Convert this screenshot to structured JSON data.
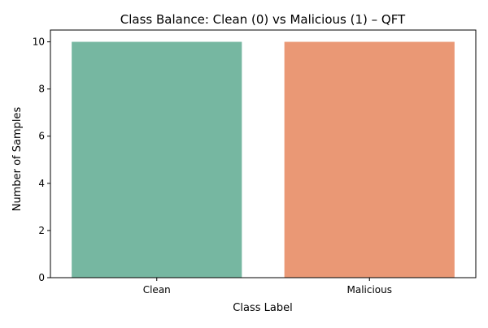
{
  "chart_data": {
    "type": "bar",
    "title": "Class Balance: Clean (0) vs Malicious (1) – QFT",
    "xlabel": "Class Label",
    "ylabel": "Number of Samples",
    "categories": [
      "Clean",
      "Malicious"
    ],
    "values": [
      10,
      10
    ],
    "colors": [
      "#76b7a1",
      "#ea9875"
    ],
    "ylim": [
      0,
      10.5
    ],
    "yticks": [
      0,
      2,
      4,
      6,
      8,
      10
    ],
    "grid": false,
    "legend": "none"
  }
}
